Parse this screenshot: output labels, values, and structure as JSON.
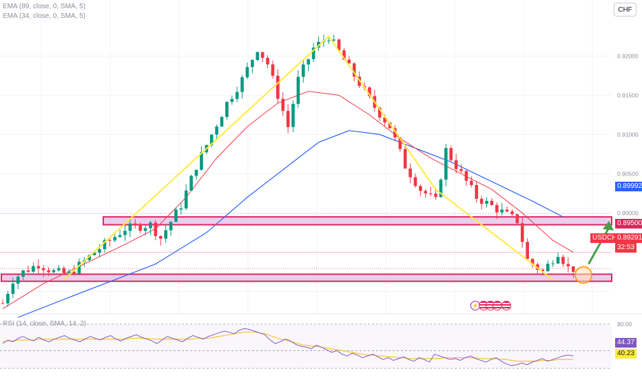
{
  "indicators": {
    "ema1": "EMA (89, close, 0, SMA, 5)",
    "ema2": "EMA (34, close, 0, SMA, 5)",
    "rsi": "RSI (14, close, SMA, 14, 2)"
  },
  "currency": "CHF",
  "price_axis": {
    "ticks": [
      "0.92000",
      "0.91500",
      "0.91000",
      "0.90500",
      "0.90000"
    ]
  },
  "rsi_axis": {
    "top_tick": "80.00"
  },
  "tags": {
    "hline": "0.89992",
    "level": "0.89500",
    "symbol": "USDCHF",
    "price": "0.89291",
    "countdown": "32:53",
    "rsi": "44.37",
    "rsi_ma": "40.23"
  },
  "colors": {
    "up": "#089981",
    "down": "#f23645",
    "ema34": "#f23645",
    "ema89": "#2962ff",
    "trend": "#ffeb3b",
    "zone_fill": "#e1bee7",
    "zone_border": "#e0245e",
    "arrow": "#43a047",
    "circle": "#ff9800",
    "rsi": "#7e57c2",
    "rsi_ma": "#fbc02d"
  },
  "events": [
    "flash-icon",
    "us-flag-icon",
    "us-flag-icon",
    "us-flag-icon",
    "us-flag-icon"
  ],
  "chart_data": {
    "type": "candlestick",
    "symbol": "USDCHF",
    "ylim": [
      0.8875,
      0.9245
    ],
    "price_path": [
      [
        0,
        0.8885
      ],
      [
        2,
        0.8915
      ],
      [
        4,
        0.8925
      ],
      [
        7,
        0.8935
      ],
      [
        10,
        0.8925
      ],
      [
        13,
        0.8922
      ],
      [
        18,
        0.895
      ],
      [
        24,
        0.898
      ],
      [
        29,
        0.8985
      ],
      [
        31,
        0.8968
      ],
      [
        35,
        0.901
      ],
      [
        38,
        0.906
      ],
      [
        41,
        0.91
      ],
      [
        44,
        0.914
      ],
      [
        47,
        0.917
      ],
      [
        50,
        0.921
      ],
      [
        52,
        0.919
      ],
      [
        54,
        0.915
      ],
      [
        56,
        0.911
      ],
      [
        58,
        0.917
      ],
      [
        61,
        0.921
      ],
      [
        64,
        0.9225
      ],
      [
        67,
        0.9195
      ],
      [
        70,
        0.9165
      ],
      [
        73,
        0.9135
      ],
      [
        76,
        0.911
      ],
      [
        79,
        0.906
      ],
      [
        82,
        0.903
      ],
      [
        85,
        0.9015
      ],
      [
        87,
        0.908
      ],
      [
        90,
        0.905
      ],
      [
        93,
        0.902
      ],
      [
        97,
        0.9005
      ],
      [
        101,
        0.899
      ],
      [
        103,
        0.894
      ],
      [
        106,
        0.8925
      ],
      [
        109,
        0.895
      ],
      [
        111,
        0.893
      ],
      [
        112,
        0.8929
      ]
    ],
    "ema34_path": [
      [
        0,
        0.8878
      ],
      [
        8,
        0.891
      ],
      [
        16,
        0.8935
      ],
      [
        24,
        0.896
      ],
      [
        30,
        0.898
      ],
      [
        36,
        0.902
      ],
      [
        42,
        0.907
      ],
      [
        48,
        0.911
      ],
      [
        54,
        0.914
      ],
      [
        60,
        0.9155
      ],
      [
        66,
        0.915
      ],
      [
        72,
        0.9125
      ],
      [
        78,
        0.9095
      ],
      [
        84,
        0.907
      ],
      [
        90,
        0.905
      ],
      [
        96,
        0.903
      ],
      [
        102,
        0.9
      ],
      [
        108,
        0.8965
      ],
      [
        112,
        0.895
      ]
    ],
    "ema89_path": [
      [
        3,
        0.8867
      ],
      [
        12,
        0.889
      ],
      [
        22,
        0.8915
      ],
      [
        30,
        0.8935
      ],
      [
        40,
        0.8975
      ],
      [
        48,
        0.902
      ],
      [
        56,
        0.906
      ],
      [
        62,
        0.909
      ],
      [
        68,
        0.9105
      ],
      [
        74,
        0.91
      ],
      [
        80,
        0.9085
      ],
      [
        88,
        0.9065
      ],
      [
        96,
        0.904
      ],
      [
        104,
        0.9015
      ],
      [
        110,
        0.8995
      ]
    ],
    "trend_line": [
      [
        12,
        0.8915
      ],
      [
        64,
        0.9225
      ],
      [
        85,
        0.903
      ],
      [
        108,
        0.8915
      ]
    ],
    "zones": [
      {
        "from": 0.8985,
        "to": 0.8995,
        "x_from": 20,
        "x_to": 129
      },
      {
        "from": 0.8913,
        "to": 0.8922,
        "x_from": 0,
        "x_to": 130
      }
    ],
    "level_line": 0.895,
    "hline": 0.89992,
    "arrow": {
      "from": [
        115,
        0.8935
      ],
      "to": [
        119,
        0.899
      ]
    },
    "circle": [
      114,
      0.8921
    ],
    "rsi": {
      "ylim": [
        20,
        90
      ],
      "levels": [
        80,
        50,
        30
      ],
      "values": [
        58,
        62,
        60,
        64,
        66,
        63,
        61,
        65,
        62,
        60,
        63,
        65,
        67,
        64,
        62,
        60,
        63,
        66,
        64,
        62,
        65,
        67,
        63,
        61,
        64,
        66,
        68,
        65,
        63,
        61,
        58,
        62,
        66,
        64,
        62,
        60,
        64,
        67,
        65,
        63,
        66,
        68,
        70,
        72,
        71,
        69,
        73,
        75,
        74,
        72,
        70,
        68,
        62,
        58,
        60,
        63,
        61,
        57,
        55,
        54,
        52,
        56,
        54,
        51,
        48,
        50,
        46,
        44,
        47,
        45,
        42,
        44,
        46,
        43,
        40,
        42,
        39,
        41,
        43,
        40,
        38,
        42,
        40,
        37,
        46,
        44,
        42,
        40,
        41,
        39,
        42,
        44,
        41,
        39,
        37,
        40,
        42,
        38,
        35,
        33,
        34,
        36,
        34,
        37,
        39,
        41,
        38,
        40,
        42,
        44,
        45,
        44
      ],
      "ma_values": [
        60,
        61,
        61,
        62,
        62,
        62,
        62,
        63,
        63,
        63,
        63,
        63,
        63,
        63,
        63,
        63,
        63,
        63,
        63,
        63,
        63,
        63,
        63,
        63,
        63,
        64,
        64,
        64,
        64,
        63,
        63,
        63,
        63,
        63,
        63,
        63,
        63,
        63,
        64,
        64,
        64,
        65,
        66,
        67,
        68,
        69,
        70,
        71,
        71,
        71,
        70,
        69,
        67,
        65,
        63,
        62,
        60,
        59,
        57,
        56,
        55,
        55,
        54,
        53,
        52,
        51,
        50,
        49,
        48,
        47,
        46,
        45,
        45,
        44,
        44,
        43,
        43,
        42,
        42,
        41,
        41,
        41,
        41,
        41,
        41,
        41,
        42,
        42,
        42,
        42,
        42,
        42,
        42,
        41,
        41,
        41,
        41,
        40,
        40,
        39,
        38,
        38,
        38,
        38,
        38,
        39,
        39,
        39,
        40,
        40,
        40,
        40
      ]
    }
  }
}
